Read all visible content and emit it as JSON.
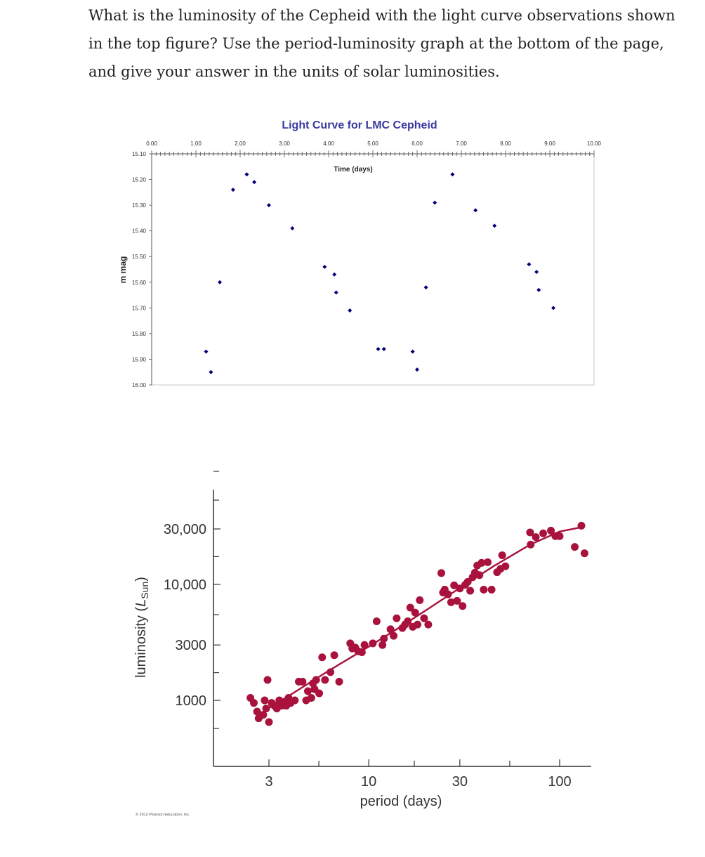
{
  "question": "What is the luminosity of the Cepheid with the light curve observations shown in the top figure? Use the period-luminosity graph at the bottom of the page, and give your answer in the units of solar luminosities.",
  "chart_data": [
    {
      "type": "scatter",
      "title": "Light Curve for LMC Cepheid",
      "xlabel": "Time (days)",
      "ylabel": "m mag",
      "xlim": [
        0,
        10
      ],
      "ylim": [
        15.1,
        16.0
      ],
      "y_inverted": true,
      "x_axis_position": "top",
      "x_ticks": [
        "0.00",
        "1.00",
        "2.00",
        "3.00",
        "4.00",
        "5.00",
        "6.00",
        "7.00",
        "8.00",
        "9.00",
        "10.00"
      ],
      "y_ticks": [
        "15.10",
        "15.20",
        "15.30",
        "15.40",
        "15.50",
        "15.60",
        "15.70",
        "15.80",
        "15.90",
        "16.00"
      ],
      "marker_color": "#00007a",
      "points": [
        {
          "x": 1.23,
          "y": 15.87
        },
        {
          "x": 1.34,
          "y": 15.95
        },
        {
          "x": 1.54,
          "y": 15.6
        },
        {
          "x": 1.84,
          "y": 15.24
        },
        {
          "x": 2.15,
          "y": 15.18
        },
        {
          "x": 2.32,
          "y": 15.21
        },
        {
          "x": 2.65,
          "y": 15.3
        },
        {
          "x": 3.18,
          "y": 15.39
        },
        {
          "x": 3.91,
          "y": 15.54
        },
        {
          "x": 4.13,
          "y": 15.57
        },
        {
          "x": 4.17,
          "y": 15.64
        },
        {
          "x": 4.48,
          "y": 15.71
        },
        {
          "x": 5.12,
          "y": 15.86
        },
        {
          "x": 5.25,
          "y": 15.86
        },
        {
          "x": 5.9,
          "y": 15.87
        },
        {
          "x": 6.0,
          "y": 15.94
        },
        {
          "x": 6.2,
          "y": 15.62
        },
        {
          "x": 6.4,
          "y": 15.29
        },
        {
          "x": 6.8,
          "y": 15.18
        },
        {
          "x": 7.32,
          "y": 15.32
        },
        {
          "x": 7.75,
          "y": 15.38
        },
        {
          "x": 8.53,
          "y": 15.53
        },
        {
          "x": 8.7,
          "y": 15.56
        },
        {
          "x": 8.75,
          "y": 15.63
        },
        {
          "x": 9.08,
          "y": 15.7
        }
      ]
    },
    {
      "type": "scatter",
      "xlabel": "period (days)",
      "ylabel": "luminosity (L_Sun)",
      "x_scale": "log",
      "y_scale": "log",
      "xlim": [
        1.7,
        150
      ],
      "ylim": [
        350,
        70000
      ],
      "x_ticks": [
        "3",
        "10",
        "30",
        "100"
      ],
      "y_ticks": [
        "1000",
        "3000",
        "10,000",
        "30,000"
      ],
      "marker_color": "#a8123c",
      "fit_line": [
        [
          2.8,
          800
        ],
        [
          4,
          1150
        ],
        [
          6,
          1750
        ],
        [
          10,
          2900
        ],
        [
          15,
          4400
        ],
        [
          20,
          6000
        ],
        [
          30,
          9300
        ],
        [
          45,
          14300
        ],
        [
          70,
          22000
        ],
        [
          100,
          28500
        ],
        [
          130,
          31000
        ]
      ],
      "copyright": "© 2012 Pearson Education, Inc.",
      "points": [
        {
          "x": 2.4,
          "y": 1050
        },
        {
          "x": 2.5,
          "y": 950
        },
        {
          "x": 2.6,
          "y": 800
        },
        {
          "x": 2.65,
          "y": 700
        },
        {
          "x": 2.8,
          "y": 750
        },
        {
          "x": 2.85,
          "y": 1000
        },
        {
          "x": 2.9,
          "y": 850
        },
        {
          "x": 2.95,
          "y": 1500
        },
        {
          "x": 3.0,
          "y": 650
        },
        {
          "x": 3.1,
          "y": 950
        },
        {
          "x": 3.2,
          "y": 900
        },
        {
          "x": 3.3,
          "y": 850
        },
        {
          "x": 3.4,
          "y": 1000
        },
        {
          "x": 3.5,
          "y": 900
        },
        {
          "x": 3.6,
          "y": 950
        },
        {
          "x": 3.7,
          "y": 900
        },
        {
          "x": 3.8,
          "y": 1050
        },
        {
          "x": 3.9,
          "y": 950
        },
        {
          "x": 4.1,
          "y": 1000
        },
        {
          "x": 4.3,
          "y": 1450
        },
        {
          "x": 4.5,
          "y": 1450
        },
        {
          "x": 4.7,
          "y": 1000
        },
        {
          "x": 4.8,
          "y": 1200
        },
        {
          "x": 5.0,
          "y": 1050
        },
        {
          "x": 5.1,
          "y": 1400
        },
        {
          "x": 5.2,
          "y": 1250
        },
        {
          "x": 5.3,
          "y": 1500
        },
        {
          "x": 5.5,
          "y": 1150
        },
        {
          "x": 5.7,
          "y": 2350
        },
        {
          "x": 5.9,
          "y": 1500
        },
        {
          "x": 6.3,
          "y": 1750
        },
        {
          "x": 6.6,
          "y": 2450
        },
        {
          "x": 7.0,
          "y": 1450
        },
        {
          "x": 8.0,
          "y": 3100
        },
        {
          "x": 8.2,
          "y": 2800
        },
        {
          "x": 8.5,
          "y": 2850
        },
        {
          "x": 8.8,
          "y": 2650
        },
        {
          "x": 9.2,
          "y": 2600
        },
        {
          "x": 9.5,
          "y": 3000
        },
        {
          "x": 10.5,
          "y": 3100
        },
        {
          "x": 11.0,
          "y": 4800
        },
        {
          "x": 11.8,
          "y": 3000
        },
        {
          "x": 12.0,
          "y": 3400
        },
        {
          "x": 13.0,
          "y": 4100
        },
        {
          "x": 13.5,
          "y": 3600
        },
        {
          "x": 14.0,
          "y": 5100
        },
        {
          "x": 15.0,
          "y": 4200
        },
        {
          "x": 15.5,
          "y": 4500
        },
        {
          "x": 16.0,
          "y": 4800
        },
        {
          "x": 16.5,
          "y": 6300
        },
        {
          "x": 17.0,
          "y": 4300
        },
        {
          "x": 17.5,
          "y": 5700
        },
        {
          "x": 18.0,
          "y": 4500
        },
        {
          "x": 18.5,
          "y": 7300
        },
        {
          "x": 19.5,
          "y": 5100
        },
        {
          "x": 20.5,
          "y": 4500
        },
        {
          "x": 24.0,
          "y": 12500
        },
        {
          "x": 24.5,
          "y": 8500
        },
        {
          "x": 25.0,
          "y": 9000
        },
        {
          "x": 26.0,
          "y": 8200
        },
        {
          "x": 27.0,
          "y": 7000
        },
        {
          "x": 28.0,
          "y": 9800
        },
        {
          "x": 29.0,
          "y": 7200
        },
        {
          "x": 30.0,
          "y": 9200
        },
        {
          "x": 31.0,
          "y": 6500
        },
        {
          "x": 32.0,
          "y": 9900
        },
        {
          "x": 33.0,
          "y": 10500
        },
        {
          "x": 34.0,
          "y": 8800
        },
        {
          "x": 35.0,
          "y": 11500
        },
        {
          "x": 36.0,
          "y": 12600
        },
        {
          "x": 37.0,
          "y": 14500
        },
        {
          "x": 38.0,
          "y": 12000
        },
        {
          "x": 39.0,
          "y": 15300
        },
        {
          "x": 40.0,
          "y": 9000
        },
        {
          "x": 42.0,
          "y": 15500
        },
        {
          "x": 44.0,
          "y": 9000
        },
        {
          "x": 47.0,
          "y": 12700
        },
        {
          "x": 49.0,
          "y": 13600
        },
        {
          "x": 50.0,
          "y": 17800
        },
        {
          "x": 52.0,
          "y": 14300
        },
        {
          "x": 70.0,
          "y": 28000
        },
        {
          "x": 70.5,
          "y": 22000
        },
        {
          "x": 75.0,
          "y": 25500
        },
        {
          "x": 82.0,
          "y": 27500
        },
        {
          "x": 90.0,
          "y": 29000
        },
        {
          "x": 95.0,
          "y": 26000
        },
        {
          "x": 100.0,
          "y": 26000
        },
        {
          "x": 120.0,
          "y": 21000
        },
        {
          "x": 130.0,
          "y": 32000
        },
        {
          "x": 135.0,
          "y": 18500
        }
      ]
    }
  ]
}
